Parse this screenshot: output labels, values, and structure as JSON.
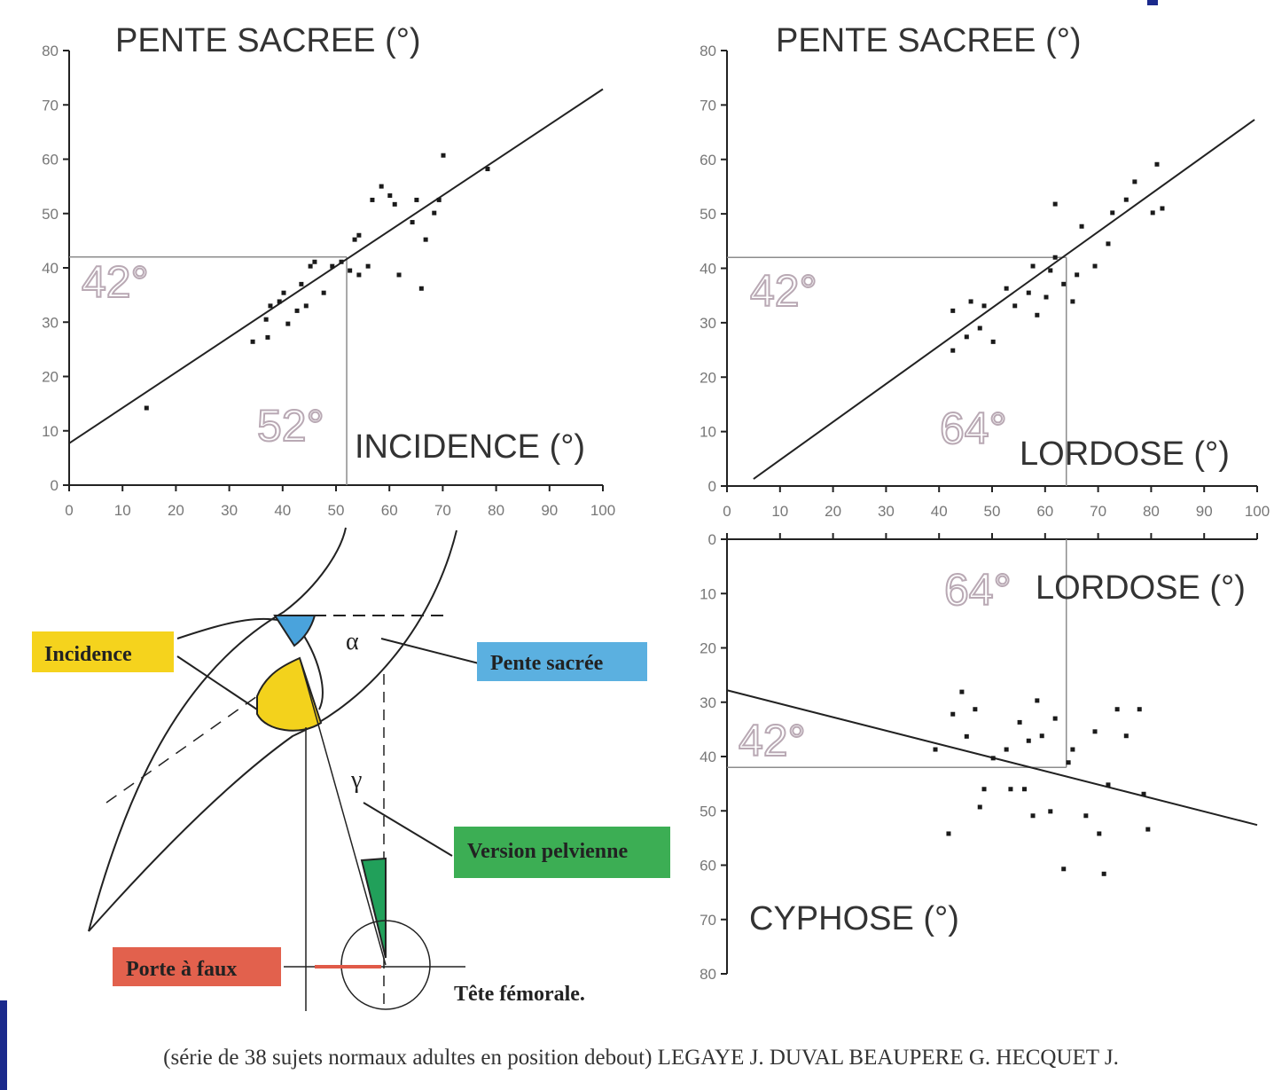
{
  "chart_data": [
    {
      "type": "scatter",
      "y_label": "PENTE SACREE (°)",
      "x_label": "INCIDENCE (°)",
      "color": "#1a1a1a",
      "x": [
        34.4,
        37.2,
        36.9,
        37.7,
        39.4,
        40.2,
        41,
        42.7,
        44.4,
        43.5,
        45.2,
        46,
        47.7,
        49.3,
        51,
        52.6,
        53.5,
        54.3,
        56,
        56.8,
        58.5,
        61,
        60.1,
        61.8,
        64.3,
        65.1,
        66,
        66.8,
        68.4,
        69.3,
        70.1,
        78.4,
        14.5,
        54.3
      ],
      "values": [
        26.4,
        27.2,
        30.5,
        33,
        33.8,
        35.4,
        29.7,
        32.1,
        33,
        37,
        40.3,
        41.1,
        35.4,
        40.3,
        41.1,
        39.5,
        45.2,
        38.7,
        40.3,
        52.5,
        55,
        51.7,
        53.3,
        38.7,
        48.4,
        52.5,
        36.2,
        45.2,
        50.1,
        52.5,
        60.7,
        58.2,
        14.2,
        46
      ],
      "fit_x": [
        0,
        100
      ],
      "fit_y": [
        7.7,
        72.9
      ],
      "ref_x": 52,
      "ref_x_label": "52°",
      "ref_y": 42,
      "ref_y_label": "42°",
      "ref_color": "#8c8c8c",
      "xlim": [
        0,
        100
      ],
      "ylim": [
        0,
        80
      ],
      "xticks": [
        0,
        10,
        20,
        30,
        40,
        50,
        60,
        70,
        80,
        90,
        100
      ],
      "yticks": [
        0,
        10,
        20,
        30,
        40,
        50,
        60,
        70,
        80
      ]
    },
    {
      "type": "scatter",
      "y_label": "PENTE SACREE (°)",
      "x_label": "LORDOSE (°)",
      "color": "#1a1a1a",
      "x": [
        42.6,
        42.6,
        45.2,
        46,
        48.5,
        50.2,
        47.7,
        52.7,
        54.3,
        56.9,
        57.7,
        58.5,
        60.2,
        61,
        61.9,
        63.5,
        65.2,
        66,
        61.9,
        66.9,
        69.4,
        71.9,
        72.7,
        75.3,
        76.9,
        80.3,
        81.1,
        82.1
      ],
      "values": [
        24.9,
        32.2,
        27.4,
        33.9,
        33.1,
        26.5,
        29,
        36.3,
        33.1,
        35.5,
        40.4,
        31.4,
        34.7,
        39.6,
        42,
        37.1,
        33.9,
        38.8,
        51.8,
        47.7,
        40.4,
        44.5,
        50.2,
        52.6,
        55.9,
        50.2,
        59.1,
        51
      ],
      "fit_x": [
        5,
        99.5
      ],
      "fit_y": [
        1.3,
        67.3
      ],
      "ref_x": 64,
      "ref_x_label": "64°",
      "ref_y": 42,
      "ref_y_label": "42°",
      "ref_color": "#8c8c8c",
      "xlim": [
        0,
        100
      ],
      "ylim": [
        0,
        80
      ],
      "xticks": [
        0,
        10,
        20,
        30,
        40,
        50,
        60,
        70,
        80,
        90,
        100
      ],
      "yticks": [
        0,
        10,
        20,
        30,
        40,
        50,
        60,
        70,
        80
      ]
    },
    {
      "type": "scatter",
      "y_label": "CYPHOSE (°)",
      "x_label": "LORDOSE (°)",
      "color": "#1a1a1a",
      "y_inverted": true,
      "x_tick_labels": false,
      "x": [
        39.3,
        41.8,
        42.6,
        44.3,
        45.2,
        46.8,
        47.7,
        48.5,
        50.2,
        52.7,
        53.5,
        55.2,
        56.1,
        56.9,
        57.7,
        58.5,
        59.4,
        61,
        61.9,
        63.5,
        64.4,
        65.2,
        67.7,
        69.4,
        70.2,
        71.1,
        71.9,
        73.6,
        75.3,
        77.8,
        78.6,
        79.4
      ],
      "values": [
        38.7,
        54.2,
        32.2,
        28.1,
        36.3,
        31.3,
        49.3,
        46,
        40.3,
        38.7,
        46,
        33.7,
        46,
        37.1,
        50.9,
        29.7,
        36.2,
        50.1,
        33,
        60.7,
        41.1,
        38.7,
        50.9,
        35.4,
        54.2,
        61.6,
        45.2,
        31.3,
        36.2,
        31.3,
        46.9,
        53.4
      ],
      "fit_x": [
        0,
        100
      ],
      "fit_y": [
        27.8,
        52.6
      ],
      "ref_x": 64,
      "ref_x_label": "64°",
      "ref_y": 42,
      "ref_y_label": "42°",
      "ref_color": "#8c8c8c",
      "xlim": [
        0,
        100
      ],
      "ylim": [
        0,
        80
      ],
      "xticks": [
        0,
        10,
        20,
        30,
        40,
        50,
        60,
        70,
        80,
        90,
        100
      ],
      "yticks": [
        0,
        10,
        20,
        30,
        40,
        50,
        60,
        70,
        80
      ]
    }
  ],
  "diagram": {
    "incidence": "Incidence",
    "pente": "Pente sacrée",
    "version": "Version pelvienne",
    "porte": "Porte à faux",
    "tete": "Tête fémorale.",
    "alpha": "α",
    "gamma": "γ"
  },
  "caption": "(série de 38 sujets normaux adultes en position debout) LEGAYE J. DUVAL BEAUPERE G. HECQUET J."
}
